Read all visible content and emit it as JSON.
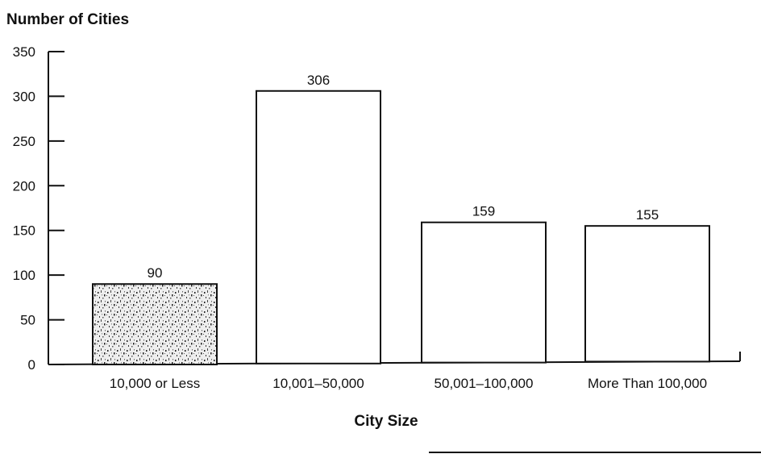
{
  "chart_data": {
    "type": "bar",
    "ylabel": "Number of Cities",
    "xlabel": "City Size",
    "categories": [
      "10,000 or Less",
      "10,001–50,000",
      "50,001–100,000",
      "More Than 100,000"
    ],
    "values": [
      90,
      306,
      159,
      155
    ],
    "data_labels": [
      "90",
      "306",
      "159",
      "155"
    ],
    "yticks": [
      0,
      50,
      100,
      150,
      200,
      250,
      300,
      350
    ],
    "ylim": [
      0,
      350
    ],
    "grid": false,
    "first_bar_fill": "stippled",
    "bar_fill": "#ffffff",
    "bar_stroke": "#111111"
  }
}
